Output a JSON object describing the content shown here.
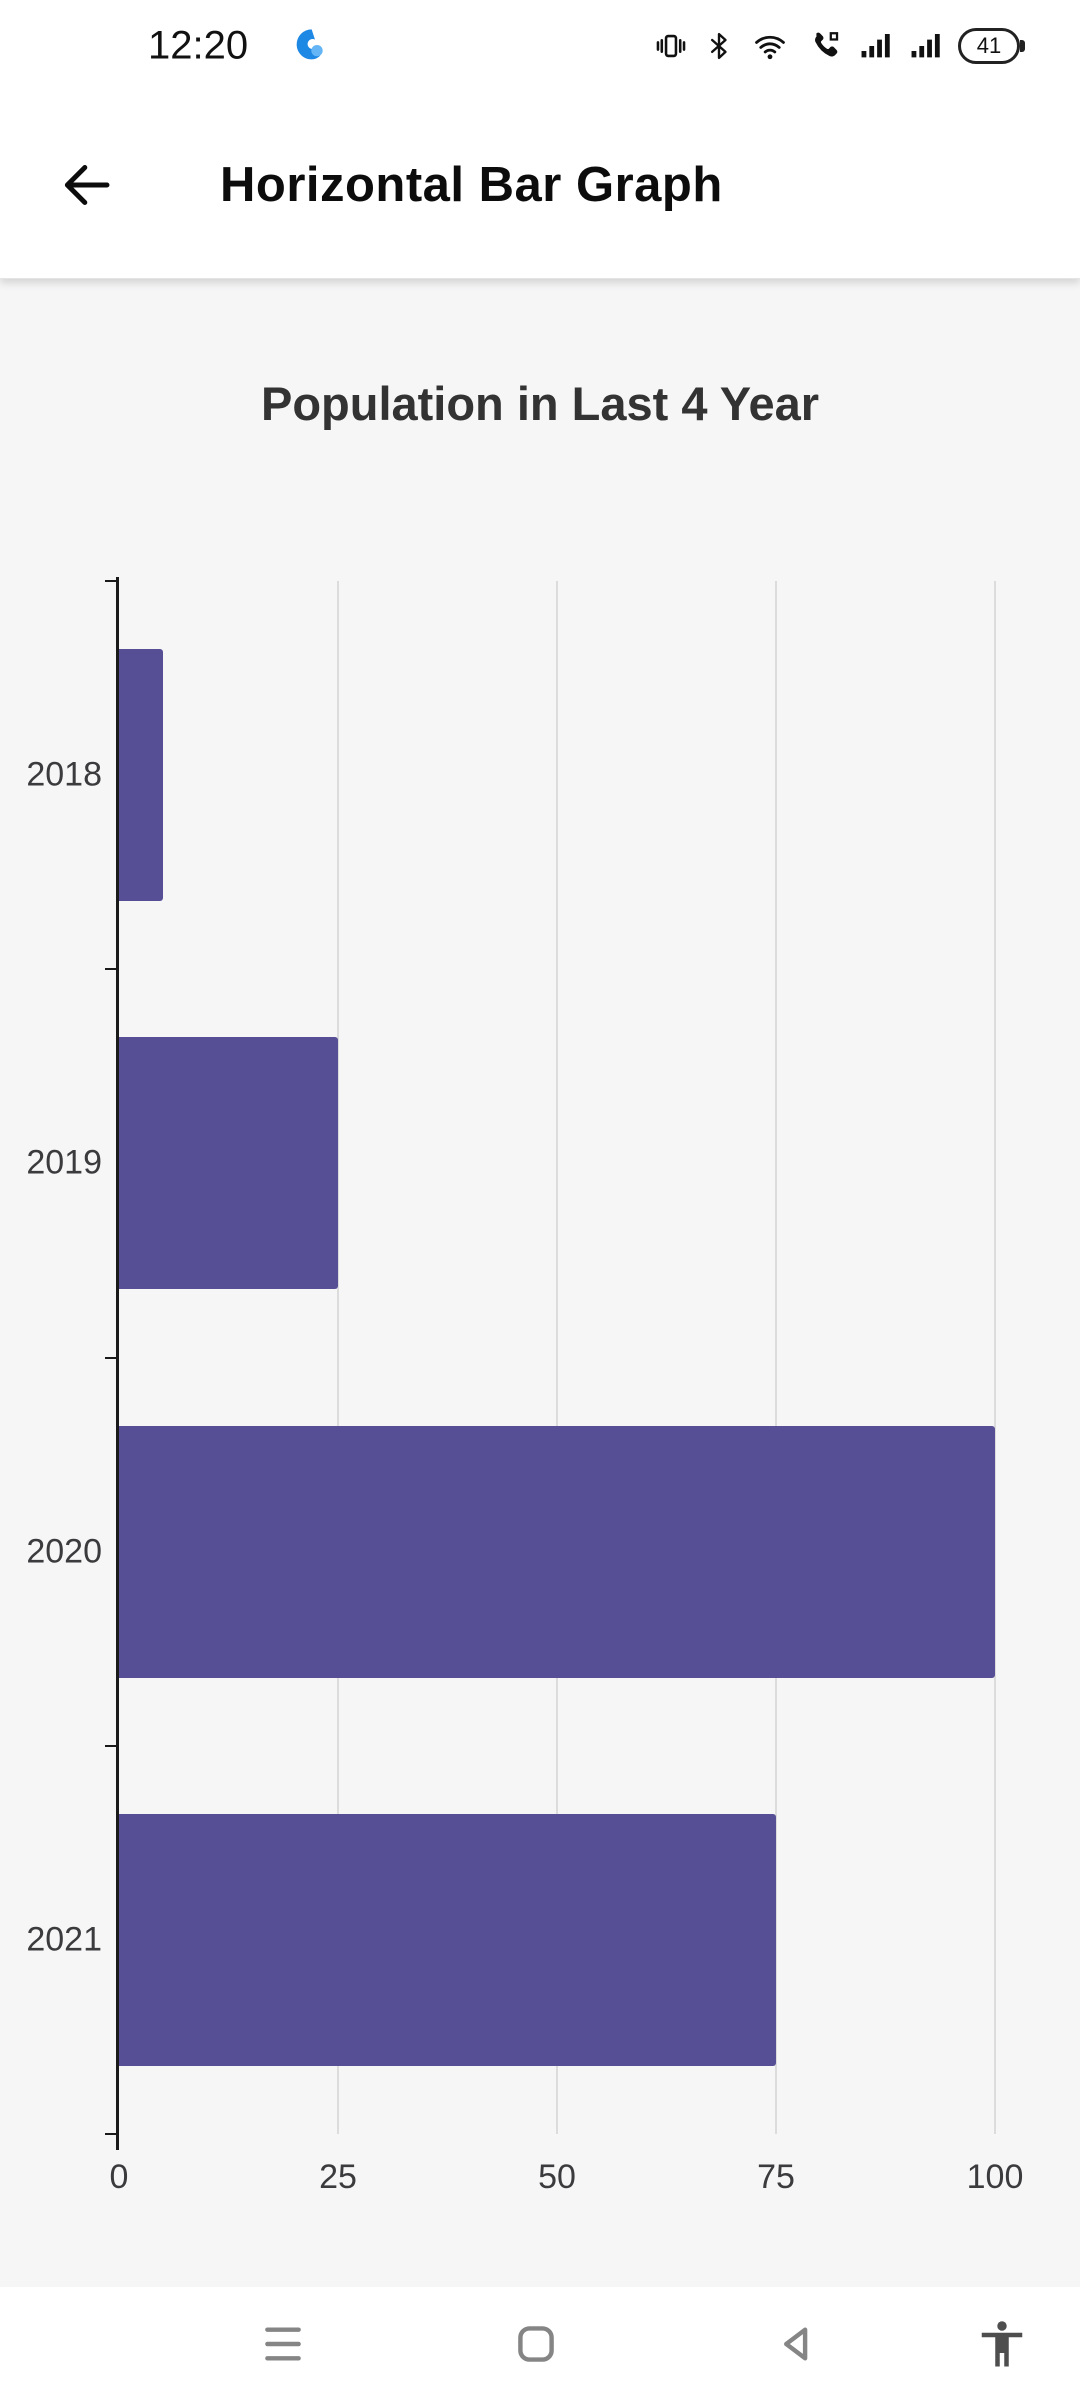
{
  "status_bar": {
    "time": "12:20",
    "battery_percent": "41",
    "icon_names": [
      "notification-swirl-icon",
      "vibrate-icon",
      "bluetooth-icon",
      "wifi-icon",
      "call-icon",
      "signal-sim1-icon",
      "signal-sim2-icon",
      "battery-icon"
    ]
  },
  "app_bar": {
    "title": "Horizontal Bar Graph",
    "back_icon_name": "back-arrow-icon"
  },
  "chart_data": {
    "type": "bar",
    "orientation": "horizontal",
    "title": "Population in Last 4 Year",
    "categories": [
      "2018",
      "2019",
      "2020",
      "2021"
    ],
    "values": [
      5,
      25,
      100,
      75
    ],
    "xlabel": "",
    "ylabel": "",
    "xlim": [
      0,
      100
    ],
    "x_ticks": [
      0,
      25,
      50,
      75,
      100
    ],
    "grid": true,
    "legend": false,
    "bar_color": "#574f96"
  },
  "nav_bar": {
    "icon_names": [
      "recents-icon",
      "home-icon",
      "back-nav-icon",
      "accessibility-icon"
    ]
  },
  "colors": {
    "accent_blue": "#1e88e5",
    "bar": "#574f96",
    "content_background": "#f6f6f7",
    "surface": "#ffffff"
  }
}
